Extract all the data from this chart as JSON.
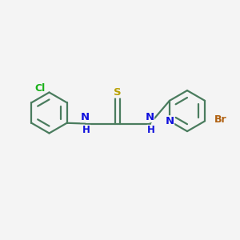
{
  "background_color": "#f4f4f4",
  "bond_color": "#4a7c5e",
  "atom_colors": {
    "N": "#1010dd",
    "S": "#b8a000",
    "Cl": "#18b018",
    "Br": "#b06010"
  },
  "figsize": [
    3.0,
    3.0
  ],
  "dpi": 100,
  "bond_lw": 1.6,
  "font_size": 9.5
}
